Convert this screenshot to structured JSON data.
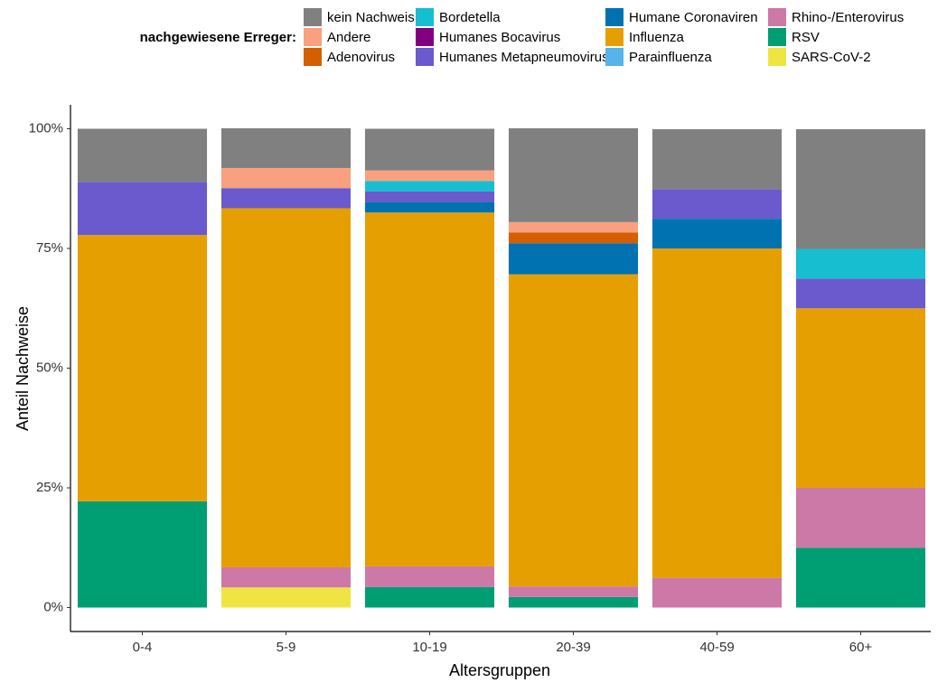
{
  "chart_data": {
    "type": "stacked_bar",
    "x_label": "Altersgruppen",
    "y_label": "Anteil Nachweise",
    "legend_title": "nachgewiesene Erreger:",
    "legend_position": "top",
    "categories": [
      "0-4",
      "5-9",
      "10-19",
      "20-39",
      "40-59",
      "60+"
    ],
    "ylim": [
      -5,
      105
    ],
    "yticks": [
      {
        "value": 0,
        "label": "0%"
      },
      {
        "value": 25,
        "label": "25%"
      },
      {
        "value": 50,
        "label": "50%"
      },
      {
        "value": 75,
        "label": "75%"
      },
      {
        "value": 100,
        "label": "100%"
      }
    ],
    "grid": false,
    "series": [
      {
        "name": "kein Nachweis",
        "color": "#808080",
        "values": [
          11.1,
          8.3,
          8.7,
          19.6,
          12.5,
          25.0
        ]
      },
      {
        "name": "Andere",
        "color": "#F9A07F",
        "values": [
          0,
          4.2,
          2.2,
          2.2,
          0,
          0
        ]
      },
      {
        "name": "Adenovirus",
        "color": "#D55E00",
        "values": [
          0,
          0,
          0,
          2.2,
          0,
          0
        ]
      },
      {
        "name": "Bordetella",
        "color": "#17BECF",
        "values": [
          0,
          0,
          2.2,
          0,
          0,
          6.2
        ]
      },
      {
        "name": "Humanes Bocavirus",
        "color": "#800080",
        "values": [
          0,
          0,
          0,
          0,
          0,
          0
        ]
      },
      {
        "name": "Humanes Metapneumovirus",
        "color": "#6A5ACD",
        "values": [
          11.1,
          4.2,
          2.2,
          0,
          6.2,
          6.2
        ]
      },
      {
        "name": "Humane Coronaviren",
        "color": "#0072B2",
        "values": [
          0,
          0,
          2.2,
          6.5,
          6.2,
          0
        ]
      },
      {
        "name": "Influenza",
        "color": "#E69F00",
        "values": [
          55.6,
          75.0,
          73.9,
          65.2,
          68.8,
          37.5
        ]
      },
      {
        "name": "Parainfluenza",
        "color": "#56B4E9",
        "values": [
          0,
          0,
          0,
          0,
          0,
          0
        ]
      },
      {
        "name": "Rhino-/Enterovirus",
        "color": "#CC79A7",
        "values": [
          0,
          4.2,
          4.3,
          2.2,
          6.2,
          12.5
        ]
      },
      {
        "name": "RSV",
        "color": "#009E73",
        "values": [
          22.2,
          0,
          4.3,
          2.2,
          0,
          12.5
        ]
      },
      {
        "name": "SARS-CoV-2",
        "color": "#F0E442",
        "values": [
          0,
          4.2,
          0,
          0,
          0,
          0
        ]
      }
    ]
  }
}
